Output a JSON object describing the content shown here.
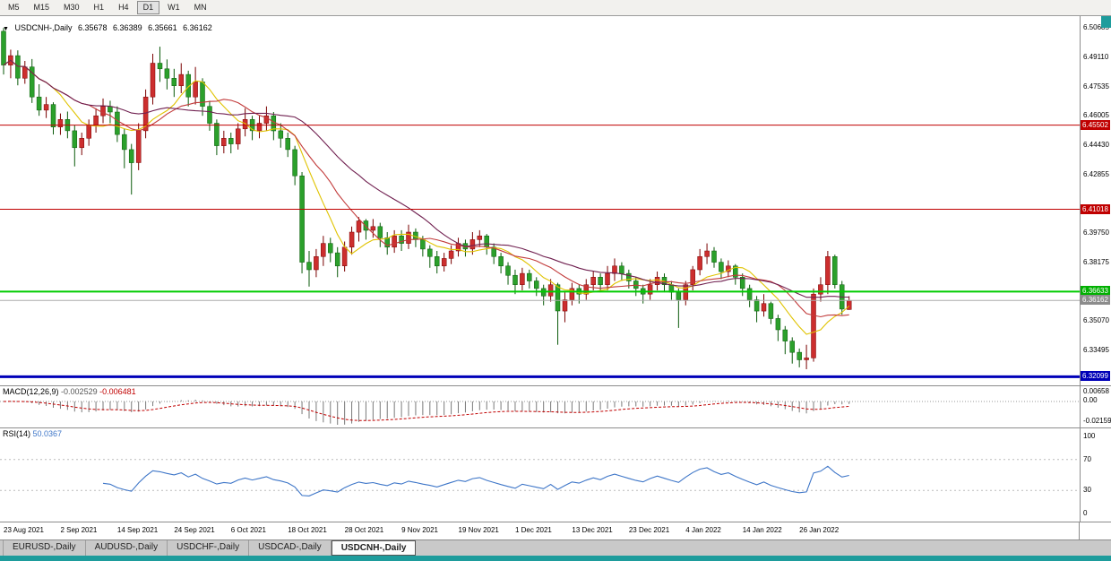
{
  "app": {
    "toolbar": {
      "timeframes": [
        "M5",
        "M15",
        "M30",
        "H1",
        "H4",
        "D1",
        "W1",
        "MN"
      ],
      "active_timeframe": "D1"
    },
    "tabs": [
      {
        "id": "eurusd",
        "label": "EURUSD-,Daily",
        "active": false
      },
      {
        "id": "audusd",
        "label": "AUDUSD-,Daily",
        "active": false
      },
      {
        "id": "usdchf",
        "label": "USDCHF-,Daily",
        "active": false
      },
      {
        "id": "usdcad",
        "label": "USDCAD-,Daily",
        "active": false
      },
      {
        "id": "usdcnh",
        "label": "USDCNH-,Daily",
        "active": true
      }
    ],
    "desktop_color": "#1E9C9C"
  },
  "chart": {
    "header": {
      "icon": "▼",
      "symbol": "USDCNH-,Daily",
      "open": "6.35678",
      "high": "6.36389",
      "low": "6.35661",
      "close": "6.36162"
    },
    "price_axis_ticks": [
      "6.50685",
      "6.49110",
      "6.47535",
      "6.46005",
      "6.44430",
      "6.42855",
      "6.39750",
      "6.38175",
      "6.35070",
      "6.33495"
    ],
    "hlines": [
      {
        "name": "resistance-line-1",
        "price": 6.45502,
        "label": "6.45502",
        "color": "#C00000",
        "badge": "#C00000",
        "width": 1
      },
      {
        "name": "resistance-line-2",
        "price": 6.41018,
        "label": "6.41018",
        "color": "#C00000",
        "badge": "#C00000",
        "width": 1
      },
      {
        "name": "support-line-green",
        "price": 6.36633,
        "label": "6.36633",
        "color": "#00CC00",
        "badge": "#00B000",
        "width": 2
      },
      {
        "name": "support-line-blue",
        "price": 6.32099,
        "label": "6.32099",
        "color": "#0000B8",
        "badge": "#0000B8",
        "width": 3
      }
    ],
    "price_line": {
      "price": 6.36162,
      "label": "6.36162",
      "color": "#ABABAB",
      "badge": "#8C8C8C",
      "width": 1
    },
    "colors": {
      "bull": "#CC2E2E",
      "bull_border": "#7A0000",
      "bear": "#2BA02B",
      "bear_border": "#0A5A0A"
    },
    "ma": [
      {
        "period": 8,
        "color": "#E0C300"
      },
      {
        "period": 13,
        "color": "#C23B3B"
      },
      {
        "period": 24,
        "color": "#702050"
      }
    ],
    "chart_data": {
      "type": "candlestick",
      "symbol": "USDCNH-",
      "timeframe": "Daily",
      "ylim": [
        6.316,
        6.507
      ],
      "x_labels": [
        {
          "i": 0,
          "t": "23 Aug 2021"
        },
        {
          "i": 8,
          "t": "2 Sep 2021"
        },
        {
          "i": 16,
          "t": "14 Sep 2021"
        },
        {
          "i": 24,
          "t": "24 Sep 2021"
        },
        {
          "i": 32,
          "t": "6 Oct 2021"
        },
        {
          "i": 40,
          "t": "18 Oct 2021"
        },
        {
          "i": 48,
          "t": "28 Oct 2021"
        },
        {
          "i": 56,
          "t": "9 Nov 2021"
        },
        {
          "i": 64,
          "t": "19 Nov 2021"
        },
        {
          "i": 72,
          "t": "1 Dec 2021"
        },
        {
          "i": 80,
          "t": "13 Dec 2021"
        },
        {
          "i": 88,
          "t": "23 Dec 2021"
        },
        {
          "i": 96,
          "t": "4 Jan 2022"
        },
        {
          "i": 104,
          "t": "14 Jan 2022"
        },
        {
          "i": 112,
          "t": "26 Jan 2022"
        }
      ],
      "candles": [
        [
          6.505,
          6.5068,
          6.482,
          6.487
        ],
        [
          6.487,
          6.4952,
          6.48,
          6.492
        ],
        [
          6.492,
          6.4948,
          6.4762,
          6.48
        ],
        [
          6.48,
          6.4892,
          6.477,
          6.486
        ],
        [
          6.486,
          6.4902,
          6.4668,
          6.47
        ],
        [
          6.47,
          6.4768,
          6.46,
          6.463
        ],
        [
          6.463,
          6.47,
          6.4588,
          6.466
        ],
        [
          6.466,
          6.4672,
          6.45,
          6.454
        ],
        [
          6.454,
          6.4612,
          6.4498,
          6.458
        ],
        [
          6.458,
          6.4622,
          6.448,
          6.452
        ],
        [
          6.452,
          6.4548,
          6.433,
          6.443
        ],
        [
          6.443,
          6.451,
          6.439,
          6.448
        ],
        [
          6.448,
          6.458,
          6.444,
          6.455
        ],
        [
          6.455,
          6.464,
          6.451,
          6.46
        ],
        [
          6.46,
          6.4692,
          6.456,
          6.465
        ],
        [
          6.465,
          6.468,
          6.456,
          6.462
        ],
        [
          6.462,
          6.465,
          6.446,
          6.45
        ],
        [
          6.45,
          6.453,
          6.432,
          6.442
        ],
        [
          6.442,
          6.445,
          6.418,
          6.435
        ],
        [
          6.435,
          6.456,
          6.431,
          6.452
        ],
        [
          6.452,
          6.474,
          6.448,
          6.47
        ],
        [
          6.47,
          6.493,
          6.466,
          6.488
        ],
        [
          6.488,
          6.4968,
          6.478,
          6.485
        ],
        [
          6.485,
          6.49,
          6.474,
          6.48
        ],
        [
          6.48,
          6.485,
          6.47,
          6.476
        ],
        [
          6.476,
          6.488,
          6.472,
          6.482
        ],
        [
          6.482,
          6.484,
          6.465,
          6.47
        ],
        [
          6.47,
          6.486,
          6.466,
          6.478
        ],
        [
          6.478,
          6.48,
          6.46,
          6.465
        ],
        [
          6.465,
          6.468,
          6.452,
          6.456
        ],
        [
          6.456,
          6.458,
          6.439,
          6.444
        ],
        [
          6.444,
          6.452,
          6.44,
          6.448
        ],
        [
          6.448,
          6.451,
          6.44,
          6.445
        ],
        [
          6.445,
          6.456,
          6.442,
          6.453
        ],
        [
          6.453,
          6.464,
          6.449,
          6.458
        ],
        [
          6.458,
          6.46,
          6.447,
          6.452
        ],
        [
          6.452,
          6.46,
          6.448,
          6.456
        ],
        [
          6.456,
          6.465,
          6.452,
          6.46
        ],
        [
          6.46,
          6.462,
          6.447,
          6.452
        ],
        [
          6.452,
          6.456,
          6.443,
          6.448
        ],
        [
          6.448,
          6.451,
          6.438,
          6.442
        ],
        [
          6.442,
          6.444,
          6.423,
          6.428
        ],
        [
          6.428,
          6.43,
          6.376,
          6.382
        ],
        [
          6.382,
          6.388,
          6.369,
          6.378
        ],
        [
          6.378,
          6.389,
          6.374,
          6.385
        ],
        [
          6.385,
          6.396,
          6.38,
          6.392
        ],
        [
          6.392,
          6.395,
          6.382,
          6.387
        ],
        [
          6.387,
          6.39,
          6.374,
          6.38
        ],
        [
          6.38,
          6.393,
          6.377,
          6.39
        ],
        [
          6.39,
          6.401,
          6.386,
          6.398
        ],
        [
          6.398,
          6.406,
          6.393,
          6.404
        ],
        [
          6.404,
          6.405,
          6.394,
          6.399
        ],
        [
          6.399,
          6.405,
          6.395,
          6.401
        ],
        [
          6.401,
          6.403,
          6.39,
          6.395
        ],
        [
          6.395,
          6.398,
          6.386,
          6.39
        ],
        [
          6.39,
          6.399,
          6.387,
          6.396
        ],
        [
          6.396,
          6.399,
          6.388,
          6.392
        ],
        [
          6.392,
          6.402,
          6.389,
          6.398
        ],
        [
          6.398,
          6.4,
          6.39,
          6.394
        ],
        [
          6.394,
          6.396,
          6.385,
          6.389
        ],
        [
          6.389,
          6.391,
          6.379,
          6.385
        ],
        [
          6.385,
          6.388,
          6.376,
          6.38
        ],
        [
          6.38,
          6.387,
          6.377,
          6.384
        ],
        [
          6.384,
          6.391,
          6.381,
          6.388
        ],
        [
          6.388,
          6.395,
          6.385,
          6.392
        ],
        [
          6.392,
          6.394,
          6.385,
          6.389
        ],
        [
          6.389,
          6.398,
          6.386,
          6.394
        ],
        [
          6.394,
          6.399,
          6.39,
          6.396
        ],
        [
          6.396,
          6.397,
          6.386,
          6.39
        ],
        [
          6.39,
          6.392,
          6.381,
          6.385
        ],
        [
          6.385,
          6.387,
          6.376,
          6.38
        ],
        [
          6.38,
          6.382,
          6.37,
          6.375
        ],
        [
          6.375,
          6.378,
          6.365,
          6.37
        ],
        [
          6.37,
          6.379,
          6.367,
          6.376
        ],
        [
          6.376,
          6.378,
          6.368,
          6.372
        ],
        [
          6.372,
          6.374,
          6.364,
          6.368
        ],
        [
          6.368,
          6.37,
          6.359,
          6.364
        ],
        [
          6.364,
          6.373,
          6.361,
          6.37
        ],
        [
          6.37,
          6.371,
          6.338,
          6.356
        ],
        [
          6.356,
          6.366,
          6.35,
          6.362
        ],
        [
          6.362,
          6.371,
          6.359,
          6.368
        ],
        [
          6.368,
          6.37,
          6.36,
          6.365
        ],
        [
          6.365,
          6.373,
          6.362,
          6.37
        ],
        [
          6.37,
          6.377,
          6.367,
          6.374
        ],
        [
          6.374,
          6.376,
          6.366,
          6.37
        ],
        [
          6.37,
          6.38,
          6.367,
          6.376
        ],
        [
          6.376,
          6.384,
          6.372,
          6.38
        ],
        [
          6.38,
          6.382,
          6.372,
          6.376
        ],
        [
          6.376,
          6.378,
          6.368,
          6.372
        ],
        [
          6.372,
          6.374,
          6.364,
          6.368
        ],
        [
          6.368,
          6.37,
          6.36,
          6.365
        ],
        [
          6.365,
          6.373,
          6.362,
          6.37
        ],
        [
          6.37,
          6.377,
          6.367,
          6.374
        ],
        [
          6.374,
          6.376,
          6.366,
          6.37
        ],
        [
          6.37,
          6.372,
          6.362,
          6.366
        ],
        [
          6.366,
          6.368,
          6.347,
          6.362
        ],
        [
          6.362,
          6.372,
          6.359,
          6.37
        ],
        [
          6.37,
          6.38,
          6.367,
          6.378
        ],
        [
          6.378,
          6.389,
          6.375,
          6.385
        ],
        [
          6.385,
          6.392,
          6.381,
          6.388
        ],
        [
          6.388,
          6.39,
          6.379,
          6.382
        ],
        [
          6.382,
          6.384,
          6.373,
          6.377
        ],
        [
          6.377,
          6.383,
          6.374,
          6.38
        ],
        [
          6.38,
          6.381,
          6.37,
          6.374
        ],
        [
          6.374,
          6.376,
          6.364,
          6.368
        ],
        [
          6.368,
          6.37,
          6.358,
          6.362
        ],
        [
          6.362,
          6.364,
          6.35,
          6.356
        ],
        [
          6.356,
          6.365,
          6.353,
          6.36
        ],
        [
          6.36,
          6.361,
          6.349,
          6.352
        ],
        [
          6.352,
          6.354,
          6.34,
          6.346
        ],
        [
          6.346,
          6.348,
          6.333,
          6.34
        ],
        [
          6.34,
          6.342,
          6.328,
          6.334
        ],
        [
          6.334,
          6.336,
          6.326,
          6.33
        ],
        [
          6.33,
          6.338,
          6.325,
          6.331
        ],
        [
          6.331,
          6.368,
          6.329,
          6.365
        ],
        [
          6.365,
          6.374,
          6.361,
          6.37
        ],
        [
          6.37,
          6.388,
          6.365,
          6.385
        ],
        [
          6.385,
          6.386,
          6.368,
          6.37
        ],
        [
          6.37,
          6.372,
          6.354,
          6.357
        ],
        [
          6.35678,
          6.36389,
          6.35661,
          6.36162
        ]
      ]
    }
  },
  "macd": {
    "name": "MACD(12,26,9)",
    "value_main": "-0.002529",
    "value_signal": "-0.006481",
    "fast": 12,
    "slow": 26,
    "signal": 9,
    "axis_ticks": [
      "0.00658",
      "0.00",
      "-0.02159"
    ],
    "histogram_color": "#7A7A7A",
    "signal_color": "#C00000"
  },
  "rsi": {
    "name": "RSI(14)",
    "value": "50.0367",
    "period": 14,
    "levels": [
      70,
      30
    ],
    "axis_ticks": [
      100,
      70,
      30,
      0
    ],
    "line_color": "#3E76C8"
  }
}
